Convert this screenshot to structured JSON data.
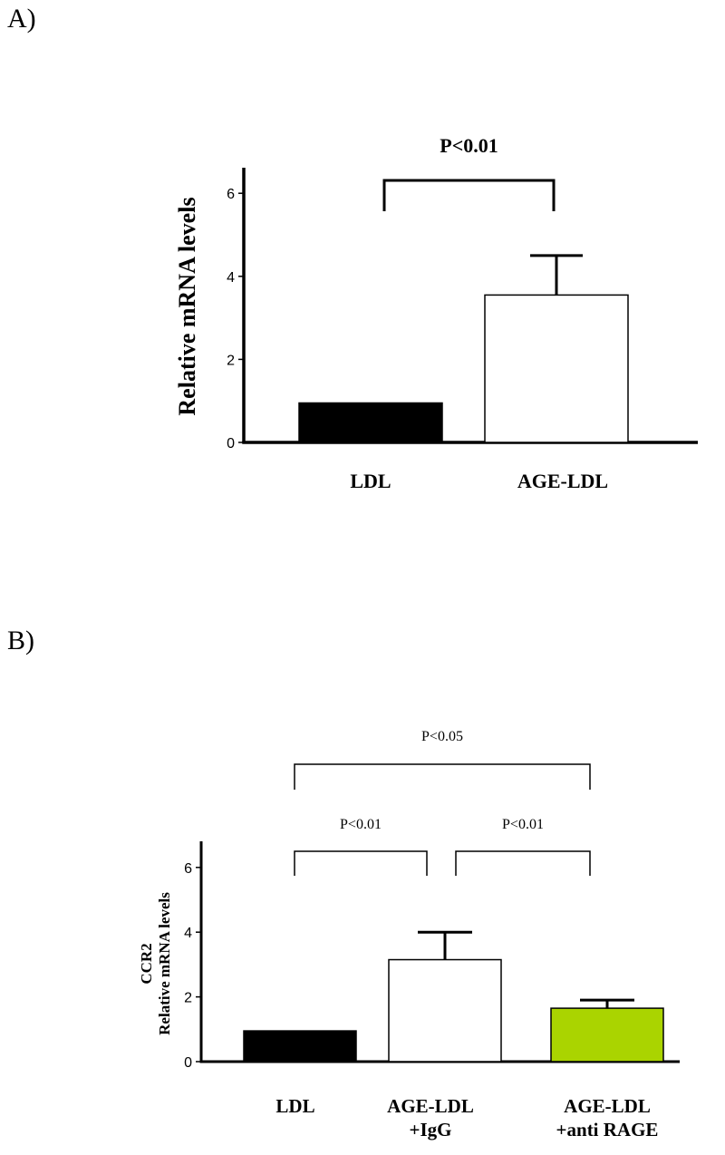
{
  "chart_data": [
    {
      "panel_label": "A)",
      "type": "bar",
      "categories": [
        "LDL",
        "AGE-LDL"
      ],
      "values": [
        0.95,
        3.55
      ],
      "error_upper": [
        null,
        4.5
      ],
      "ylabel": "Relative mRNA levels",
      "ylim": [
        0,
        6.6
      ],
      "yticks": [
        "0",
        "2",
        "4",
        "6"
      ],
      "colors": [
        "#000000",
        "#ffffff"
      ],
      "significance": [
        {
          "from": 0,
          "to": 1,
          "label": "P<0.01"
        }
      ]
    },
    {
      "panel_label": "B)",
      "type": "bar",
      "categories": [
        [
          "LDL"
        ],
        [
          "AGE-LDL",
          "+IgG"
        ],
        [
          "AGE-LDL",
          "+anti RAGE"
        ]
      ],
      "values": [
        0.95,
        3.15,
        1.65
      ],
      "error_upper": [
        null,
        4.0,
        1.9
      ],
      "ylabel_lines": [
        "CCR2",
        "Relative mRNA levels"
      ],
      "ylim": [
        0,
        6.6
      ],
      "yticks": [
        "0",
        "2",
        "4",
        "6"
      ],
      "colors": [
        "#000000",
        "#ffffff",
        "#aad400"
      ],
      "significance": [
        {
          "from": 0,
          "to": 1,
          "label": "P<0.01"
        },
        {
          "from": 1,
          "to": 2,
          "label": "P<0.01"
        },
        {
          "from": 0,
          "to": 2,
          "label": "P<0.05"
        }
      ]
    }
  ]
}
